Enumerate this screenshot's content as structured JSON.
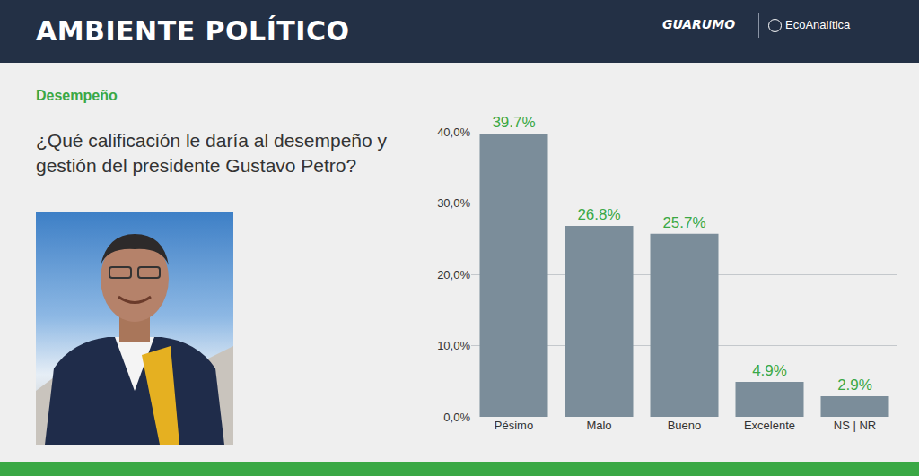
{
  "header": {
    "title": "AMBIENTE POLÍTICO",
    "logos": [
      "GUARUMO",
      "EcoAnalítica"
    ]
  },
  "chart_data": {
    "type": "bar",
    "subtitle": "Desempeño",
    "title": "¿Qué calificación le daría al desempeño y gestión del presidente Gustavo Petro?",
    "categories": [
      "Pésimo",
      "Malo",
      "Bueno",
      "Excelente",
      "NS | NR"
    ],
    "values": [
      39.7,
      26.8,
      25.7,
      4.9,
      2.9
    ],
    "value_labels": [
      "39.7%",
      "26.8%",
      "25.7%",
      "4.9%",
      "2.9%"
    ],
    "data_labels": true,
    "color": "#7b8d9a",
    "ylim": [
      0,
      40
    ],
    "yticks": [
      {
        "value": 0,
        "label": "0,0%"
      },
      {
        "value": 10,
        "label": "10,0%"
      },
      {
        "value": 20,
        "label": "20,0%"
      },
      {
        "value": 30,
        "label": "30,0%"
      },
      {
        "value": 40,
        "label": "40,0%"
      }
    ],
    "grid": true
  }
}
